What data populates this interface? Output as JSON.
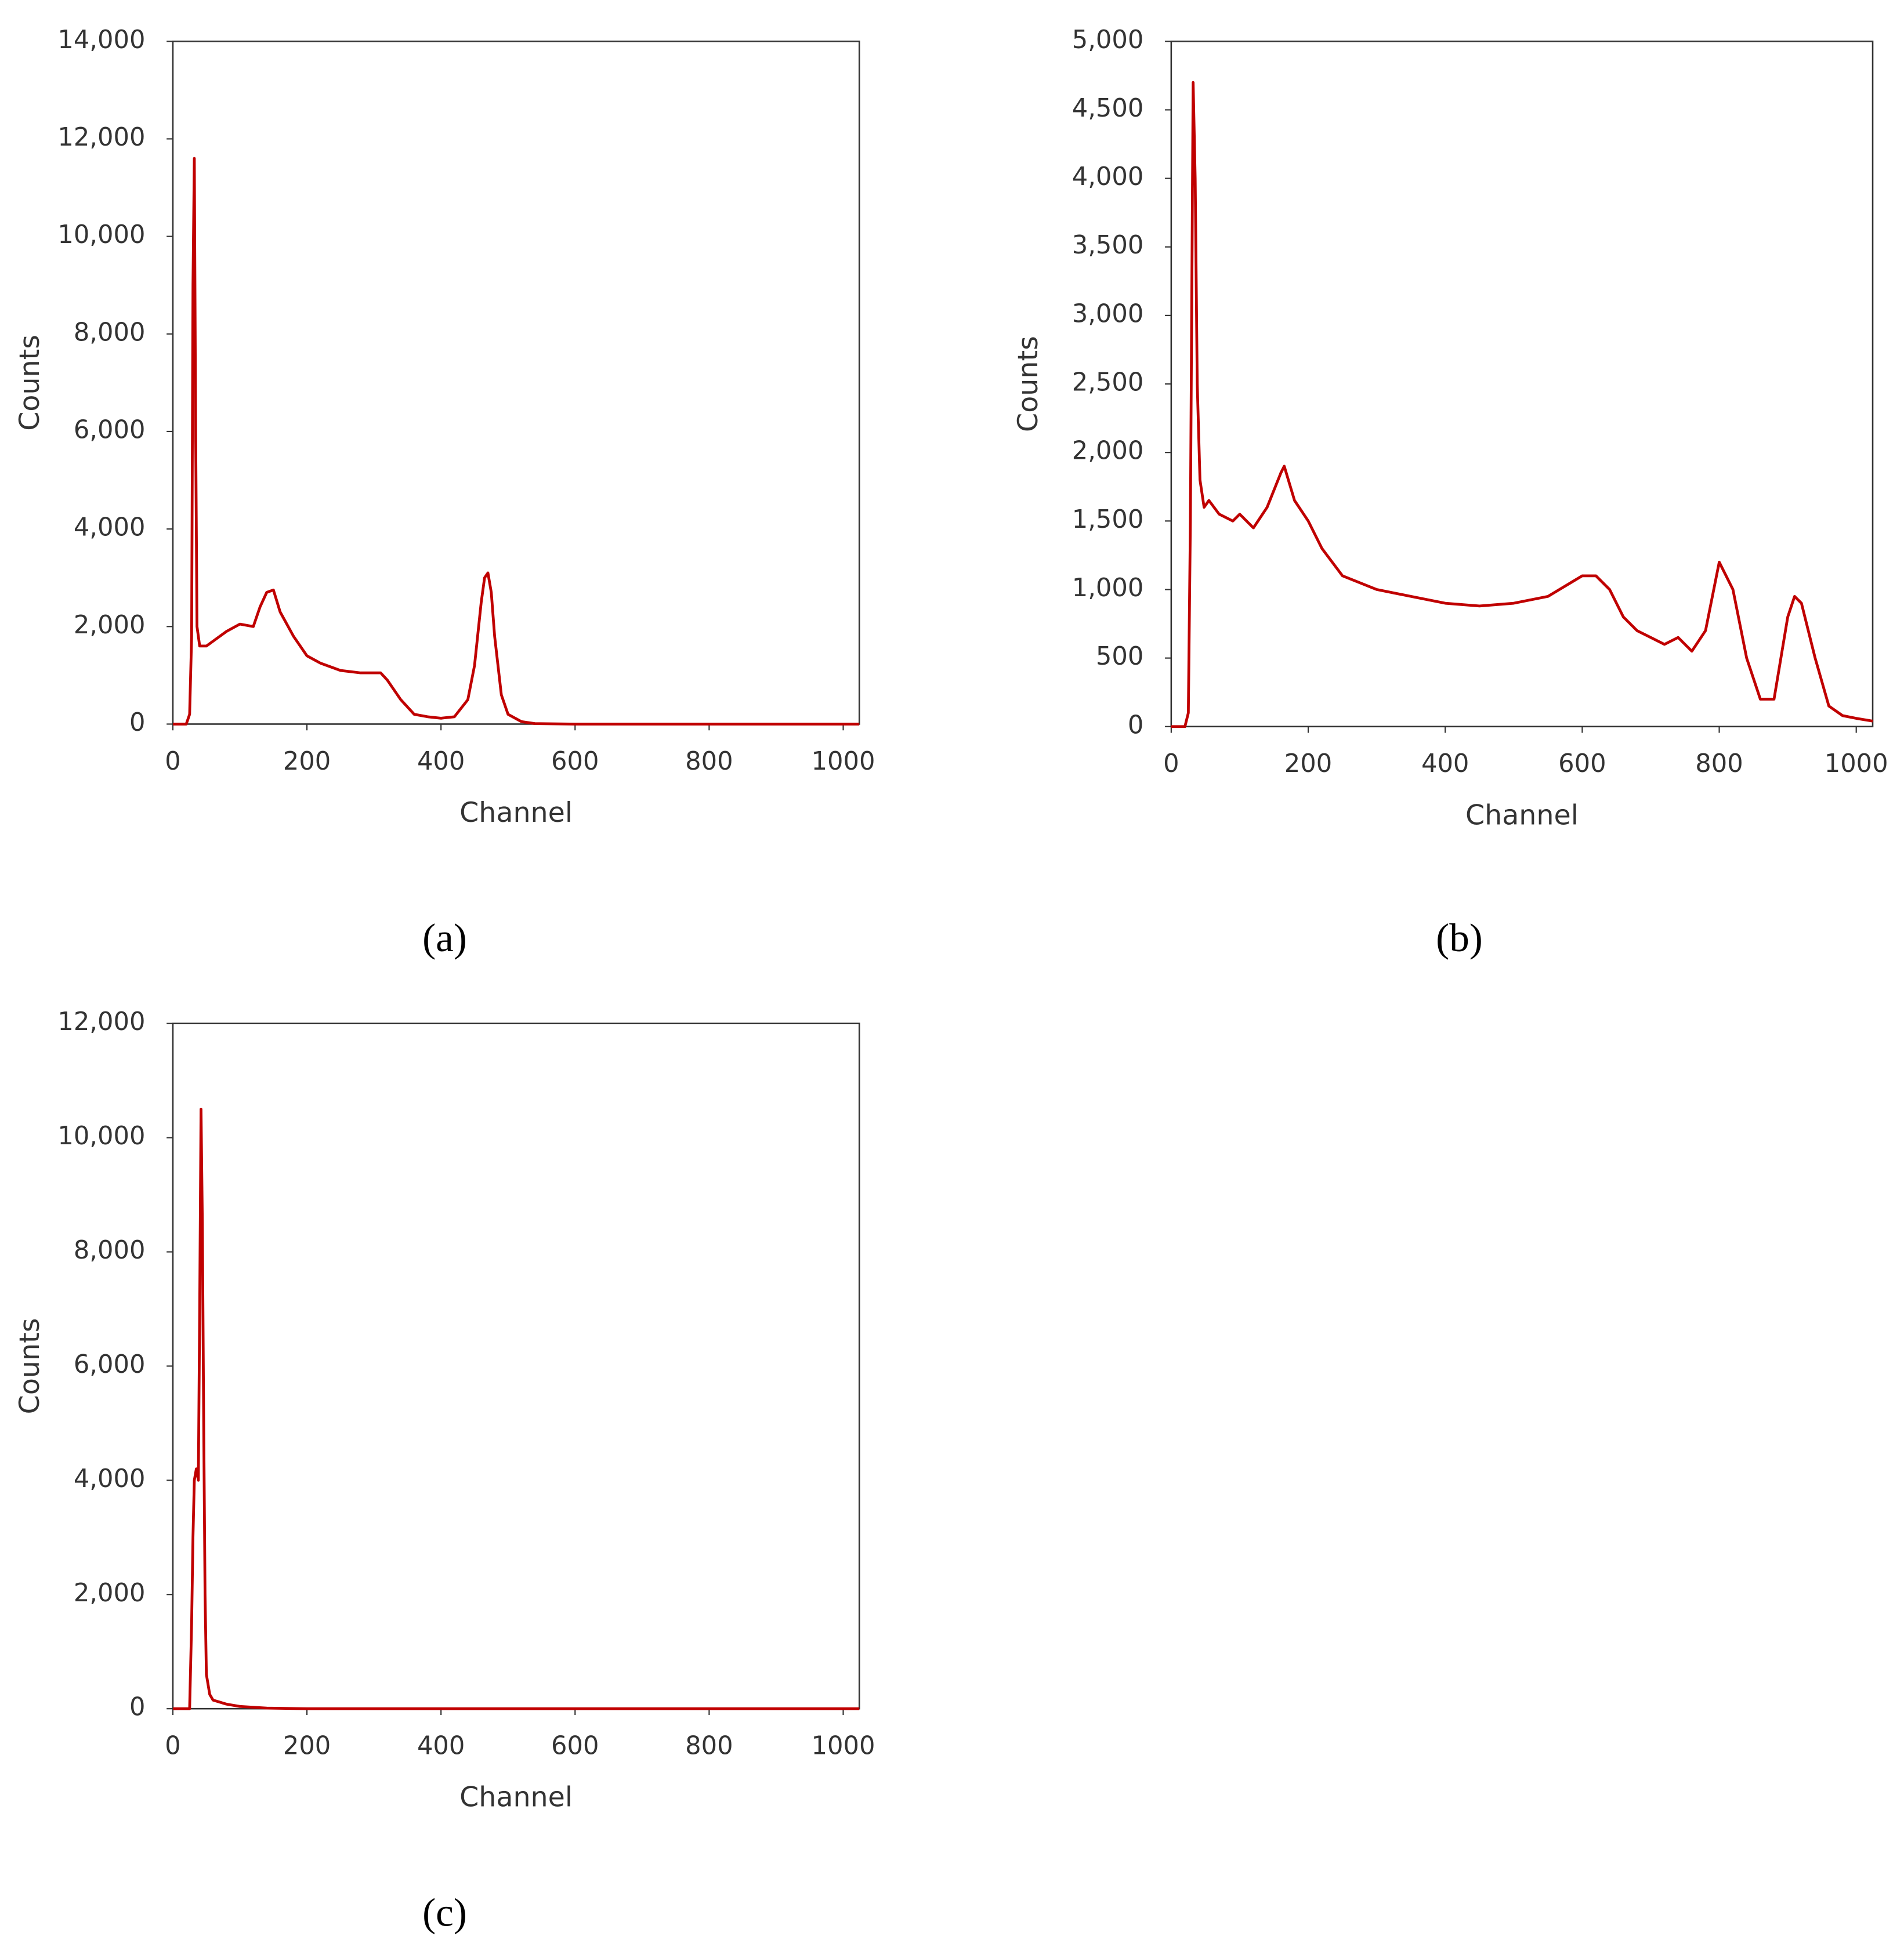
{
  "chart_data": [
    {
      "type": "line",
      "x_label": "Channel",
      "y_label": "Counts",
      "panel": "(a)",
      "xlim": [
        0,
        1024
      ],
      "ylim": [
        0,
        14000
      ],
      "xticks": [
        0,
        200,
        400,
        600,
        800,
        1000
      ],
      "yticks": [
        0,
        {
          "value": 2000,
          "label": "2,000"
        },
        {
          "value": 4000,
          "label": "4,000"
        },
        {
          "value": 6000,
          "label": "6,000"
        },
        {
          "value": 8000,
          "label": "8,000"
        },
        {
          "value": 10000,
          "label": "10,000"
        },
        {
          "value": 12000,
          "label": "12,000"
        },
        {
          "value": 14000,
          "label": "14,000"
        }
      ],
      "color": "#c00000",
      "x": [
        0,
        20,
        25,
        28,
        30,
        32,
        34,
        36,
        40,
        50,
        60,
        80,
        100,
        120,
        130,
        140,
        150,
        160,
        180,
        200,
        220,
        250,
        280,
        300,
        310,
        320,
        340,
        360,
        380,
        400,
        420,
        440,
        450,
        460,
        465,
        470,
        475,
        480,
        490,
        500,
        520,
        540,
        600,
        800,
        1000,
        1024
      ],
      "values": [
        0,
        0,
        200,
        1800,
        9000,
        11600,
        6000,
        2000,
        1600,
        1600,
        1700,
        1900,
        2050,
        2000,
        2400,
        2700,
        2750,
        2300,
        1800,
        1400,
        1250,
        1100,
        1050,
        1050,
        1050,
        900,
        500,
        200,
        150,
        120,
        150,
        500,
        1200,
        2500,
        3000,
        3100,
        2700,
        1800,
        600,
        200,
        50,
        10,
        0,
        0,
        0,
        0
      ]
    },
    {
      "type": "line",
      "x_label": "Channel",
      "y_label": "Counts",
      "panel": "(b)",
      "xlim": [
        0,
        1024
      ],
      "ylim": [
        0,
        5000
      ],
      "xticks": [
        0,
        200,
        400,
        600,
        800,
        1000
      ],
      "yticks": [
        0,
        500,
        {
          "value": 1000,
          "label": "1,000"
        },
        {
          "value": 1500,
          "label": "1,500"
        },
        {
          "value": 2000,
          "label": "2,000"
        },
        {
          "value": 2500,
          "label": "2,500"
        },
        {
          "value": 3000,
          "label": "3,000"
        },
        {
          "value": 3500,
          "label": "3,500"
        },
        {
          "value": 4000,
          "label": "4,000"
        },
        {
          "value": 4500,
          "label": "4,500"
        },
        {
          "value": 5000,
          "label": "5,000"
        }
      ],
      "color": "#c00000",
      "x": [
        0,
        20,
        25,
        28,
        32,
        35,
        38,
        42,
        48,
        55,
        70,
        90,
        100,
        120,
        140,
        160,
        165,
        180,
        200,
        220,
        250,
        300,
        350,
        400,
        450,
        500,
        550,
        600,
        620,
        640,
        660,
        680,
        700,
        720,
        740,
        760,
        780,
        800,
        820,
        840,
        860,
        880,
        900,
        910,
        920,
        940,
        960,
        980,
        1000,
        1024
      ],
      "values": [
        0,
        0,
        100,
        1500,
        4700,
        4000,
        2500,
        1800,
        1600,
        1650,
        1550,
        1500,
        1550,
        1450,
        1600,
        1850,
        1900,
        1650,
        1500,
        1300,
        1100,
        1000,
        950,
        900,
        880,
        900,
        950,
        1100,
        1100,
        1000,
        800,
        700,
        650,
        600,
        650,
        550,
        700,
        1200,
        1000,
        500,
        200,
        200,
        800,
        950,
        900,
        500,
        150,
        80,
        60,
        40
      ]
    },
    {
      "type": "line",
      "x_label": "Channel",
      "y_label": "Counts",
      "panel": "(c)",
      "xlim": [
        0,
        1024
      ],
      "ylim": [
        0,
        12000
      ],
      "xticks": [
        0,
        200,
        400,
        600,
        800,
        1000
      ],
      "yticks": [
        0,
        {
          "value": 2000,
          "label": "2,000"
        },
        {
          "value": 4000,
          "label": "4,000"
        },
        {
          "value": 6000,
          "label": "6,000"
        },
        {
          "value": 8000,
          "label": "8,000"
        },
        {
          "value": 10000,
          "label": "10,000"
        },
        {
          "value": 12000,
          "label": "12,000"
        }
      ],
      "color": "#c00000",
      "x": [
        0,
        20,
        25,
        28,
        30,
        32,
        35,
        38,
        40,
        42,
        44,
        46,
        48,
        50,
        55,
        60,
        80,
        100,
        140,
        200,
        1000,
        1024
      ],
      "values": [
        0,
        0,
        0,
        1500,
        3000,
        4000,
        4200,
        4000,
        7000,
        10500,
        8500,
        5000,
        2000,
        600,
        250,
        150,
        80,
        40,
        10,
        0,
        0,
        0
      ]
    }
  ]
}
